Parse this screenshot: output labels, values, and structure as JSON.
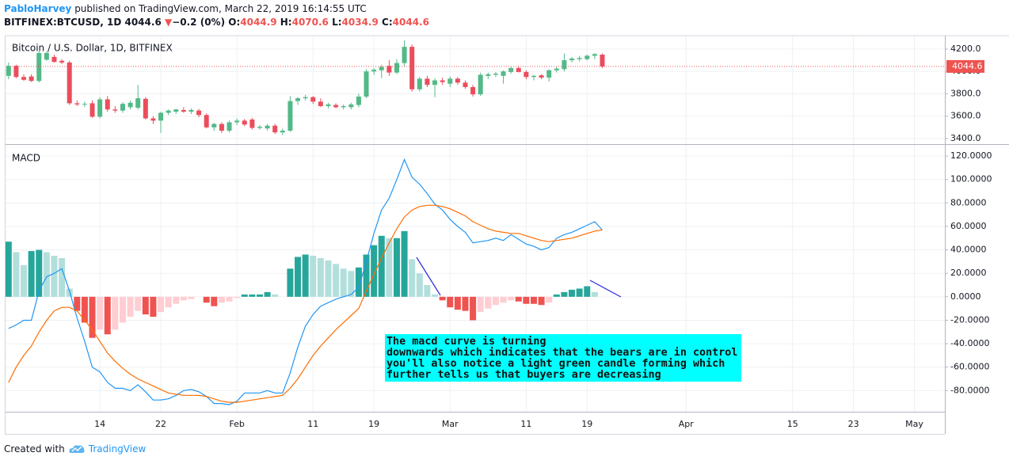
{
  "header": {
    "author": "PabloHarvey",
    "published": "published on TradingView.com, March 22, 2019 16:14:55 UTC",
    "symbol": "BITFINEX:BTCUSD, 1D",
    "last": 4044.6,
    "arrow": "▼",
    "change": "−0.2 (0%)",
    "ohlc": [
      {
        "label": "O:",
        "value": 4044.9
      },
      {
        "label": "H:",
        "value": 4070.6
      },
      {
        "label": "L:",
        "value": 4034.9
      },
      {
        "label": "C:",
        "value": 4044.6
      }
    ]
  },
  "footer": {
    "text": "Created with",
    "brand": "TradingView"
  },
  "annotation": {
    "lines": [
      "The macd curve is turning",
      "downwards which indicates that the bears are in control",
      "you'll also notice a light green candle forming which",
      "further tells us that buyers are decreasing"
    ]
  },
  "chart_data": [
    {
      "type": "candlestick",
      "title": "Bitcoin / U.S. Dollar, 1D, BITFINEX",
      "up_color": "#53b987",
      "down_color": "#eb4d5c",
      "x": [
        2,
        3,
        4,
        5,
        6,
        7,
        8,
        9,
        10,
        11,
        12,
        13,
        14,
        15,
        16,
        17,
        18,
        19,
        20,
        21,
        22,
        23,
        24,
        25,
        26,
        27,
        28,
        29,
        30,
        31,
        32,
        33,
        34,
        35,
        36,
        37,
        38,
        39,
        40,
        41,
        42,
        43,
        44,
        45,
        46,
        47,
        48,
        49,
        50,
        51,
        52,
        53,
        54,
        55,
        56,
        57,
        58,
        59,
        60,
        61,
        62,
        63,
        64,
        65,
        66,
        67,
        68,
        69,
        70,
        71,
        72,
        73,
        74,
        75,
        76,
        77,
        78,
        79,
        80
      ],
      "open": [
        3960,
        4050,
        3950,
        3955,
        3915,
        4105,
        4130,
        4095,
        4080,
        3715,
        3705,
        3715,
        3595,
        3750,
        3660,
        3650,
        3680,
        3675,
        3755,
        3580,
        3560,
        3630,
        3640,
        3655,
        3640,
        3650,
        3610,
        3500,
        3530,
        3470,
        3545,
        3560,
        3570,
        3495,
        3490,
        3515,
        3455,
        3470,
        3735,
        3760,
        3770,
        3730,
        3690,
        3700,
        3680,
        3680,
        3700,
        3775,
        4000,
        4010,
        4050,
        3990,
        4075,
        4220,
        3840,
        3935,
        3880,
        3920,
        3890,
        3935,
        3900,
        3860,
        3795,
        3960,
        3970,
        3960,
        3995,
        4030,
        3995,
        3950,
        3965,
        3945,
        4010,
        4020,
        4100,
        4110,
        4110,
        4140,
        4150
      ],
      "high": [
        4080,
        4060,
        3975,
        3975,
        4180,
        4180,
        4150,
        4110,
        4095,
        3740,
        3730,
        3740,
        3770,
        3780,
        3690,
        3725,
        3740,
        3880,
        3770,
        3600,
        3640,
        3660,
        3665,
        3680,
        3670,
        3665,
        3625,
        3540,
        3545,
        3560,
        3580,
        3575,
        3585,
        3520,
        3530,
        3530,
        3490,
        3780,
        3770,
        3790,
        3780,
        3760,
        3720,
        3715,
        3705,
        3720,
        3800,
        4020,
        4030,
        4060,
        4100,
        4110,
        4280,
        4240,
        3950,
        3960,
        3940,
        3945,
        3955,
        3950,
        3920,
        3880,
        3990,
        3990,
        3995,
        4010,
        4040,
        4045,
        4010,
        3970,
        3975,
        4020,
        4040,
        4160,
        4130,
        4140,
        4150,
        4165,
        4160
      ],
      "low": [
        3930,
        3940,
        3915,
        3905,
        3900,
        4095,
        4080,
        4065,
        3700,
        3690,
        3680,
        3585,
        3580,
        3640,
        3630,
        3630,
        3660,
        3660,
        3570,
        3530,
        3450,
        3610,
        3620,
        3630,
        3620,
        3590,
        3490,
        3470,
        3450,
        3455,
        3520,
        3510,
        3480,
        3480,
        3470,
        3440,
        3430,
        3460,
        3700,
        3740,
        3710,
        3680,
        3670,
        3670,
        3660,
        3660,
        3680,
        3760,
        3970,
        3940,
        3960,
        3975,
        4040,
        3820,
        3820,
        3860,
        3770,
        3880,
        3860,
        3880,
        3845,
        3775,
        3780,
        3930,
        3950,
        3890,
        3980,
        3990,
        3930,
        3920,
        3930,
        3910,
        3990,
        4000,
        4080,
        4090,
        4100,
        4110,
        4030
      ],
      "close": [
        4050,
        3950,
        3925,
        3915,
        4165,
        4165,
        4085,
        4080,
        3715,
        3705,
        3710,
        3595,
        3750,
        3660,
        3650,
        3710,
        3720,
        3760,
        3580,
        3560,
        3630,
        3650,
        3660,
        3640,
        3655,
        3610,
        3500,
        3530,
        3470,
        3545,
        3560,
        3525,
        3495,
        3505,
        3515,
        3455,
        3470,
        3735,
        3760,
        3770,
        3730,
        3690,
        3705,
        3680,
        3690,
        3705,
        3775,
        4000,
        4015,
        4040,
        3990,
        4075,
        4220,
        3840,
        3935,
        3880,
        3920,
        3905,
        3935,
        3900,
        3860,
        3795,
        3970,
        3975,
        3980,
        4000,
        4030,
        3995,
        3950,
        3960,
        3945,
        4010,
        4025,
        4100,
        4115,
        4120,
        4140,
        4155,
        4044.6
      ],
      "last_price": 4044.6,
      "last_price_color": "#ef5350",
      "xlim": [
        1.5,
        125
      ],
      "ylim": [
        3350,
        4320
      ],
      "yticks": [
        {
          "value": 3400,
          "label": "3400.0"
        },
        {
          "value": 3600,
          "label": "3600.0"
        },
        {
          "value": 3800,
          "label": "3800.0"
        },
        {
          "value": 4000,
          "label": "4000.0"
        },
        {
          "value": 4200,
          "label": "4200.0"
        }
      ],
      "grid": true
    },
    {
      "type": "macd",
      "title": "MACD",
      "x": [
        2,
        3,
        4,
        5,
        6,
        7,
        8,
        9,
        10,
        11,
        12,
        13,
        14,
        15,
        16,
        17,
        18,
        19,
        20,
        21,
        22,
        23,
        24,
        25,
        26,
        27,
        28,
        29,
        30,
        31,
        32,
        33,
        34,
        35,
        36,
        37,
        38,
        39,
        40,
        41,
        42,
        43,
        44,
        45,
        46,
        47,
        48,
        49,
        50,
        51,
        52,
        53,
        54,
        55,
        56,
        57,
        58,
        59,
        60,
        61,
        62,
        63,
        64,
        65,
        66,
        67,
        68,
        69,
        70,
        71,
        72,
        73,
        74,
        75,
        76,
        77,
        78,
        79,
        80
      ],
      "histogram": {
        "colors": [
          "#26a69a",
          "#b2dfdb",
          "#ef5350",
          "#ffcdd2"
        ],
        "values": [
          47,
          38,
          27,
          39,
          40,
          38,
          35,
          33,
          7,
          -12,
          -22,
          -35,
          -28,
          -32,
          -28,
          -22,
          -17,
          -12,
          -15,
          -17,
          -13,
          -9,
          -6,
          -3,
          -2,
          0,
          -5,
          -8,
          -5,
          -4,
          -1,
          2,
          2,
          2,
          4,
          2,
          0,
          24,
          34,
          36,
          35,
          33,
          31,
          28,
          24,
          22,
          25,
          36,
          44,
          52,
          50,
          50,
          56,
          32,
          20,
          10,
          2,
          -3,
          -9,
          -11,
          -12,
          -20,
          -13,
          -10,
          -7,
          -5,
          -3,
          -4,
          -6,
          -6,
          -7,
          -5,
          2,
          4,
          6,
          7,
          9,
          4,
          0
        ]
      },
      "series": [
        {
          "color": "#2196f3",
          "values": [
            -27,
            -24,
            -20,
            -20,
            5,
            17,
            20,
            24,
            5,
            -18,
            -38,
            -60,
            -64,
            -73,
            -78,
            -78,
            -80,
            -75,
            -81,
            -88,
            -88,
            -87,
            -84,
            -80,
            -79,
            -81,
            -85,
            -91,
            -91,
            -92,
            -89,
            -82,
            -82,
            -82,
            -80,
            -82,
            -82,
            -65,
            -43,
            -25,
            -15,
            -8,
            -5,
            -2,
            0,
            2,
            8,
            30,
            54,
            74,
            84,
            100,
            117,
            102,
            96,
            88,
            79,
            74,
            66,
            60,
            55,
            46,
            47,
            48,
            50,
            48,
            53,
            49,
            45,
            43,
            40,
            42,
            50,
            53,
            55,
            58,
            61,
            64,
            57
          ]
        },
        {
          "color": "#ff6d00",
          "values": [
            -73,
            -60,
            -50,
            -42,
            -30,
            -20,
            -12,
            -9,
            -9,
            -12,
            -20,
            -28,
            -38,
            -48,
            -55,
            -61,
            -66,
            -70,
            -73,
            -76,
            -79,
            -82,
            -83,
            -84,
            -84,
            -84,
            -85,
            -87,
            -89,
            -90,
            -90,
            -89,
            -88,
            -87,
            -86,
            -85,
            -84,
            -78,
            -70,
            -60,
            -50,
            -42,
            -35,
            -28,
            -22,
            -16,
            -10,
            5,
            19,
            33,
            46,
            58,
            68,
            74,
            77,
            78,
            78,
            77,
            75,
            72,
            69,
            64,
            61,
            58,
            56,
            55,
            54,
            54,
            52,
            50,
            48,
            47,
            48,
            49,
            50,
            52,
            54,
            56,
            57
          ]
        }
      ],
      "xlim": [
        1.5,
        125
      ],
      "ylim": [
        -98,
        129.5
      ],
      "xticks": [
        {
          "value": 14,
          "label": "14"
        },
        {
          "value": 22,
          "label": "22"
        },
        {
          "value": 32,
          "label": "Feb"
        },
        {
          "value": 42,
          "label": "11"
        },
        {
          "value": 50,
          "label": "19"
        },
        {
          "value": 60,
          "label": "Mar"
        },
        {
          "value": 70,
          "label": "11"
        },
        {
          "value": 78,
          "label": "19"
        },
        {
          "value": 91,
          "label": "Apr"
        },
        {
          "value": 105,
          "label": "15"
        },
        {
          "value": 113,
          "label": "23"
        },
        {
          "value": 121,
          "label": "May"
        }
      ],
      "yticks": [
        {
          "value": -80,
          "label": "-80.0000"
        },
        {
          "value": -60,
          "label": "-60.0000"
        },
        {
          "value": -40,
          "label": "-40.0000"
        },
        {
          "value": -20,
          "label": "-20.0000"
        },
        {
          "value": 0,
          "label": "0.0000"
        },
        {
          "value": 20,
          "label": "20.0000"
        },
        {
          "value": 40,
          "label": "40.0000"
        },
        {
          "value": 60,
          "label": "60.0000"
        },
        {
          "value": 80,
          "label": "80.0000"
        },
        {
          "value": 100,
          "label": "100.0000"
        },
        {
          "value": 120,
          "label": "120.0000"
        }
      ],
      "grid": true
    }
  ]
}
